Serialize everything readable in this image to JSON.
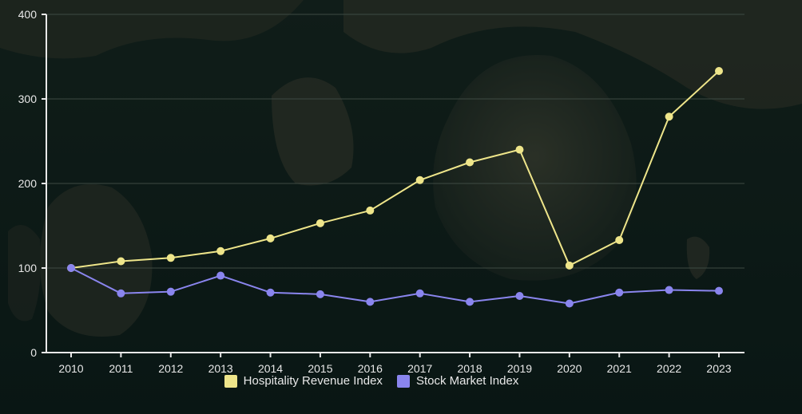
{
  "colors": {
    "revenue": "#eee58a",
    "stock": "#8a85ee",
    "axis": "#e8e8e8",
    "grid": "#3e4a43"
  },
  "chart_data": {
    "type": "line",
    "x": [
      "2010",
      "2011",
      "2012",
      "2013",
      "2014",
      "2015",
      "2016",
      "2017",
      "2018",
      "2019",
      "2020",
      "2021",
      "2022",
      "2023"
    ],
    "series": [
      {
        "name": "Hospitality Revenue Index",
        "color": "#eee58a",
        "values": [
          100,
          108,
          112,
          120,
          135,
          153,
          168,
          204,
          225,
          240,
          103,
          133,
          279,
          333
        ]
      },
      {
        "name": "Stock Market Index",
        "color": "#8a85ee",
        "values": [
          100,
          70,
          72,
          91,
          71,
          69,
          60,
          70,
          60,
          67,
          58,
          71,
          74,
          73
        ]
      }
    ],
    "yticks": [
      "0",
      "100",
      "200",
      "300",
      "400"
    ],
    "ylim": [
      0,
      400
    ],
    "grid": true,
    "legend_position": "bottom-center"
  }
}
